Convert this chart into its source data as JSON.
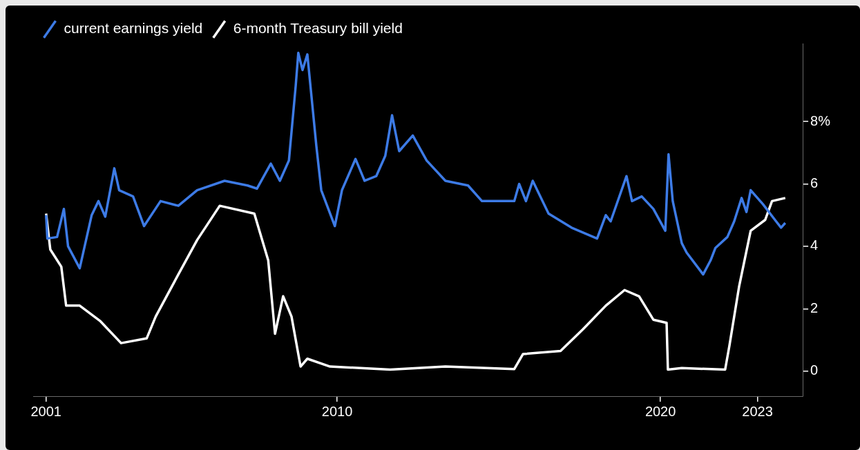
{
  "chart_data": {
    "type": "line",
    "legend": "top left",
    "xlim": [
      2000.6,
      2024.4
    ],
    "xticks": [
      2001,
      2010,
      2020,
      2023
    ],
    "ylim": [
      -0.8,
      10.5
    ],
    "yticks": [
      0,
      2,
      4,
      6,
      {
        "value": 8,
        "label": "8%"
      }
    ],
    "series": [
      {
        "name": "current earnings yield",
        "color": "#3d7be6",
        "x": [
          2001.0,
          2001.04,
          2001.34,
          2001.55,
          2001.68,
          2002.04,
          2002.41,
          2002.62,
          2002.83,
          2003.11,
          2003.26,
          2003.69,
          2004.03,
          2004.54,
          2005.09,
          2005.67,
          2006.52,
          2007.23,
          2007.52,
          2007.95,
          2008.23,
          2008.51,
          2008.72,
          2008.8,
          2008.93,
          2009.08,
          2009.36,
          2009.51,
          2009.93,
          2010.15,
          2010.57,
          2010.85,
          2011.21,
          2011.49,
          2011.7,
          2011.92,
          2012.34,
          2012.77,
          2013.35,
          2014.05,
          2014.48,
          2015.48,
          2015.63,
          2015.84,
          2016.05,
          2016.54,
          2017.25,
          2018.04,
          2018.31,
          2018.46,
          2018.95,
          2019.12,
          2019.42,
          2019.78,
          2020.15,
          2020.25,
          2020.38,
          2020.66,
          2020.81,
          2021.32,
          2021.55,
          2021.7,
          2022.07,
          2022.28,
          2022.51,
          2022.66,
          2022.79,
          2023.17,
          2023.54,
          2023.73,
          2023.86
        ],
        "values": [
          5.0,
          4.25,
          4.3,
          5.2,
          4.0,
          3.3,
          5.0,
          5.45,
          4.95,
          6.5,
          5.8,
          5.6,
          4.65,
          5.45,
          5.3,
          5.8,
          6.1,
          5.95,
          5.85,
          6.65,
          6.1,
          6.75,
          9.15,
          10.2,
          9.65,
          10.15,
          7.2,
          5.8,
          4.65,
          5.8,
          6.8,
          6.1,
          6.25,
          6.9,
          8.2,
          7.05,
          7.55,
          6.75,
          6.1,
          5.95,
          5.45,
          5.45,
          6.0,
          5.45,
          6.1,
          5.05,
          4.6,
          4.25,
          5.0,
          4.8,
          6.25,
          5.45,
          5.6,
          5.2,
          4.5,
          6.95,
          5.45,
          4.1,
          3.8,
          3.1,
          3.55,
          3.95,
          4.3,
          4.8,
          5.55,
          5.1,
          5.8,
          5.35,
          4.85,
          4.6,
          4.75
        ]
      },
      {
        "name": "6-month Treasury bill yield",
        "color": "#ffffff",
        "x": [
          2001.0,
          2001.13,
          2001.47,
          2001.62,
          2002.04,
          2002.68,
          2003.32,
          2004.11,
          2004.39,
          2005.09,
          2005.67,
          2006.37,
          2007.44,
          2007.87,
          2008.08,
          2008.33,
          2008.59,
          2008.87,
          2009.08,
          2009.78,
          2011.64,
          2013.35,
          2015.48,
          2015.75,
          2016.91,
          2017.61,
          2018.31,
          2018.89,
          2019.34,
          2019.78,
          2020.19,
          2020.23,
          2020.66,
          2022.0,
          2022.13,
          2022.43,
          2022.79,
          2023.24,
          2023.45,
          2023.86
        ],
        "values": [
          5.05,
          3.9,
          3.35,
          2.1,
          2.1,
          1.6,
          0.9,
          1.05,
          1.75,
          3.1,
          4.2,
          5.3,
          5.05,
          3.55,
          1.2,
          2.4,
          1.75,
          0.15,
          0.4,
          0.15,
          0.05,
          0.15,
          0.07,
          0.55,
          0.65,
          1.35,
          2.1,
          2.6,
          2.4,
          1.65,
          1.55,
          0.05,
          0.1,
          0.05,
          0.8,
          2.7,
          4.5,
          4.85,
          5.45,
          5.55
        ]
      }
    ]
  }
}
